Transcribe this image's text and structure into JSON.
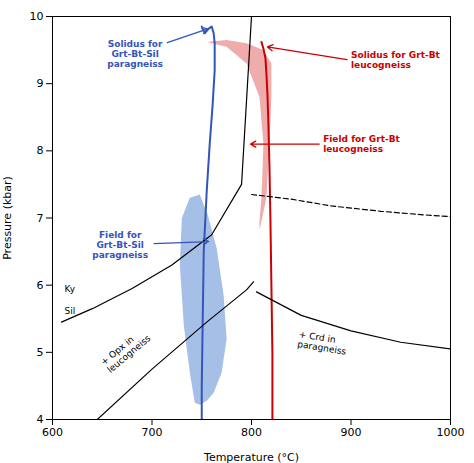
{
  "chart_data": {
    "type": "line",
    "xlabel": "Temperature (°C)",
    "ylabel": "Pressure (kbar)",
    "xlim": [
      600,
      1000
    ],
    "ylim": [
      4,
      10
    ],
    "xticks": [
      600,
      700,
      800,
      900,
      1000
    ],
    "yticks": [
      4,
      5,
      6,
      7,
      8,
      9,
      10
    ],
    "grid": false,
    "series": [
      {
        "type": "area",
        "color": "#e89090",
        "x": [
          720,
          735,
          755,
          775,
          795,
          812,
          820,
          820,
          818,
          815,
          810,
          808,
          808,
          810,
          812,
          808,
          795,
          775,
          755,
          735,
          720
        ],
        "y": [
          9.3,
          9.5,
          9.62,
          9.65,
          9.6,
          9.5,
          9.3,
          8.8,
          8.1,
          7.3,
          6.95,
          6.82,
          6.95,
          7.3,
          8.1,
          8.8,
          9.3,
          9.55,
          9.62,
          9.5,
          9.3
        ]
      },
      {
        "type": "area",
        "color": "#88aadd",
        "x": [
          743,
          748,
          755,
          762,
          770,
          775,
          772,
          765,
          756,
          748,
          738,
          730,
          728,
          732,
          738,
          743
        ],
        "y": [
          4.25,
          4.22,
          4.28,
          4.4,
          4.7,
          5.2,
          5.85,
          6.55,
          7.05,
          7.35,
          7.3,
          7.0,
          6.3,
          5.4,
          4.7,
          4.25
        ]
      },
      {
        "type": "line",
        "color": "#3355bb",
        "line_style": "solid",
        "x": [
          750,
          750,
          751,
          752,
          755,
          758,
          761,
          763,
          763,
          762,
          760,
          757,
          753,
          750
        ],
        "y": [
          4.0,
          4.5,
          5.5,
          6.5,
          7.4,
          8.1,
          8.7,
          9.2,
          9.6,
          9.75,
          9.85,
          9.82,
          9.75,
          9.85
        ]
      },
      {
        "type": "line",
        "color": "#cc0000",
        "line_style": "solid",
        "x": [
          821,
          821,
          820,
          819,
          818,
          817,
          816,
          815,
          814,
          812,
          810
        ],
        "y": [
          4.0,
          5.0,
          6.0,
          7.0,
          7.8,
          8.4,
          8.85,
          9.15,
          9.38,
          9.52,
          9.62
        ]
      },
      {
        "type": "line",
        "color": "black",
        "line_style": "solid",
        "x": [
          609,
          640,
          680,
          720,
          760,
          790,
          800
        ],
        "y": [
          5.45,
          5.65,
          5.95,
          6.3,
          6.75,
          7.5,
          10.0
        ]
      },
      {
        "type": "line",
        "color": "black",
        "line_style": "solid",
        "x": [
          645,
          700,
          755,
          795,
          802
        ],
        "y": [
          4.0,
          4.75,
          5.45,
          5.93,
          6.05
        ]
      },
      {
        "type": "line",
        "color": "black",
        "line_style": "dashed",
        "x": [
          800,
          840,
          880,
          930,
          970,
          1000
        ],
        "y": [
          7.35,
          7.28,
          7.18,
          7.1,
          7.05,
          7.02
        ]
      },
      {
        "type": "line",
        "color": "black",
        "line_style": "solid",
        "x": [
          805,
          850,
          900,
          950,
          1000
        ],
        "y": [
          5.9,
          5.55,
          5.32,
          5.15,
          5.05
        ]
      }
    ],
    "annotations": [
      {
        "text": "Ky",
        "x": 612,
        "y": 5.95,
        "color": "black"
      },
      {
        "text": "Sil",
        "x": 612,
        "y": 5.62,
        "color": "black"
      },
      {
        "text": "+ Opx in\nleucogneiss",
        "x": 653,
        "y": 4.78,
        "color": "black"
      },
      {
        "text": "+ Crd in\nparagneiss",
        "x": 847,
        "y": 5.2,
        "color": "black"
      },
      {
        "text": "Solidus for\nGrt-Bt-Sil\nparagneiss",
        "x": 757,
        "y": 9.82,
        "text_x": 683,
        "text_y": 9.45,
        "color": "#3355bb"
      },
      {
        "text": "Solidus for Grt-Bt\nleucogneiss",
        "x": 815,
        "y": 9.55,
        "text_x": 900,
        "text_y": 9.35,
        "color": "#cc0000"
      },
      {
        "text": "Field for\nGrt-Bt-Sil\nparagneiss",
        "x": 758,
        "y": 6.65,
        "text_x": 668,
        "text_y": 6.6,
        "color": "#3355bb"
      },
      {
        "text": "Field for Grt-Bt\nleucogneiss",
        "x": 798,
        "y": 8.1,
        "text_x": 872,
        "text_y": 8.1,
        "color": "#cc0000"
      }
    ]
  }
}
